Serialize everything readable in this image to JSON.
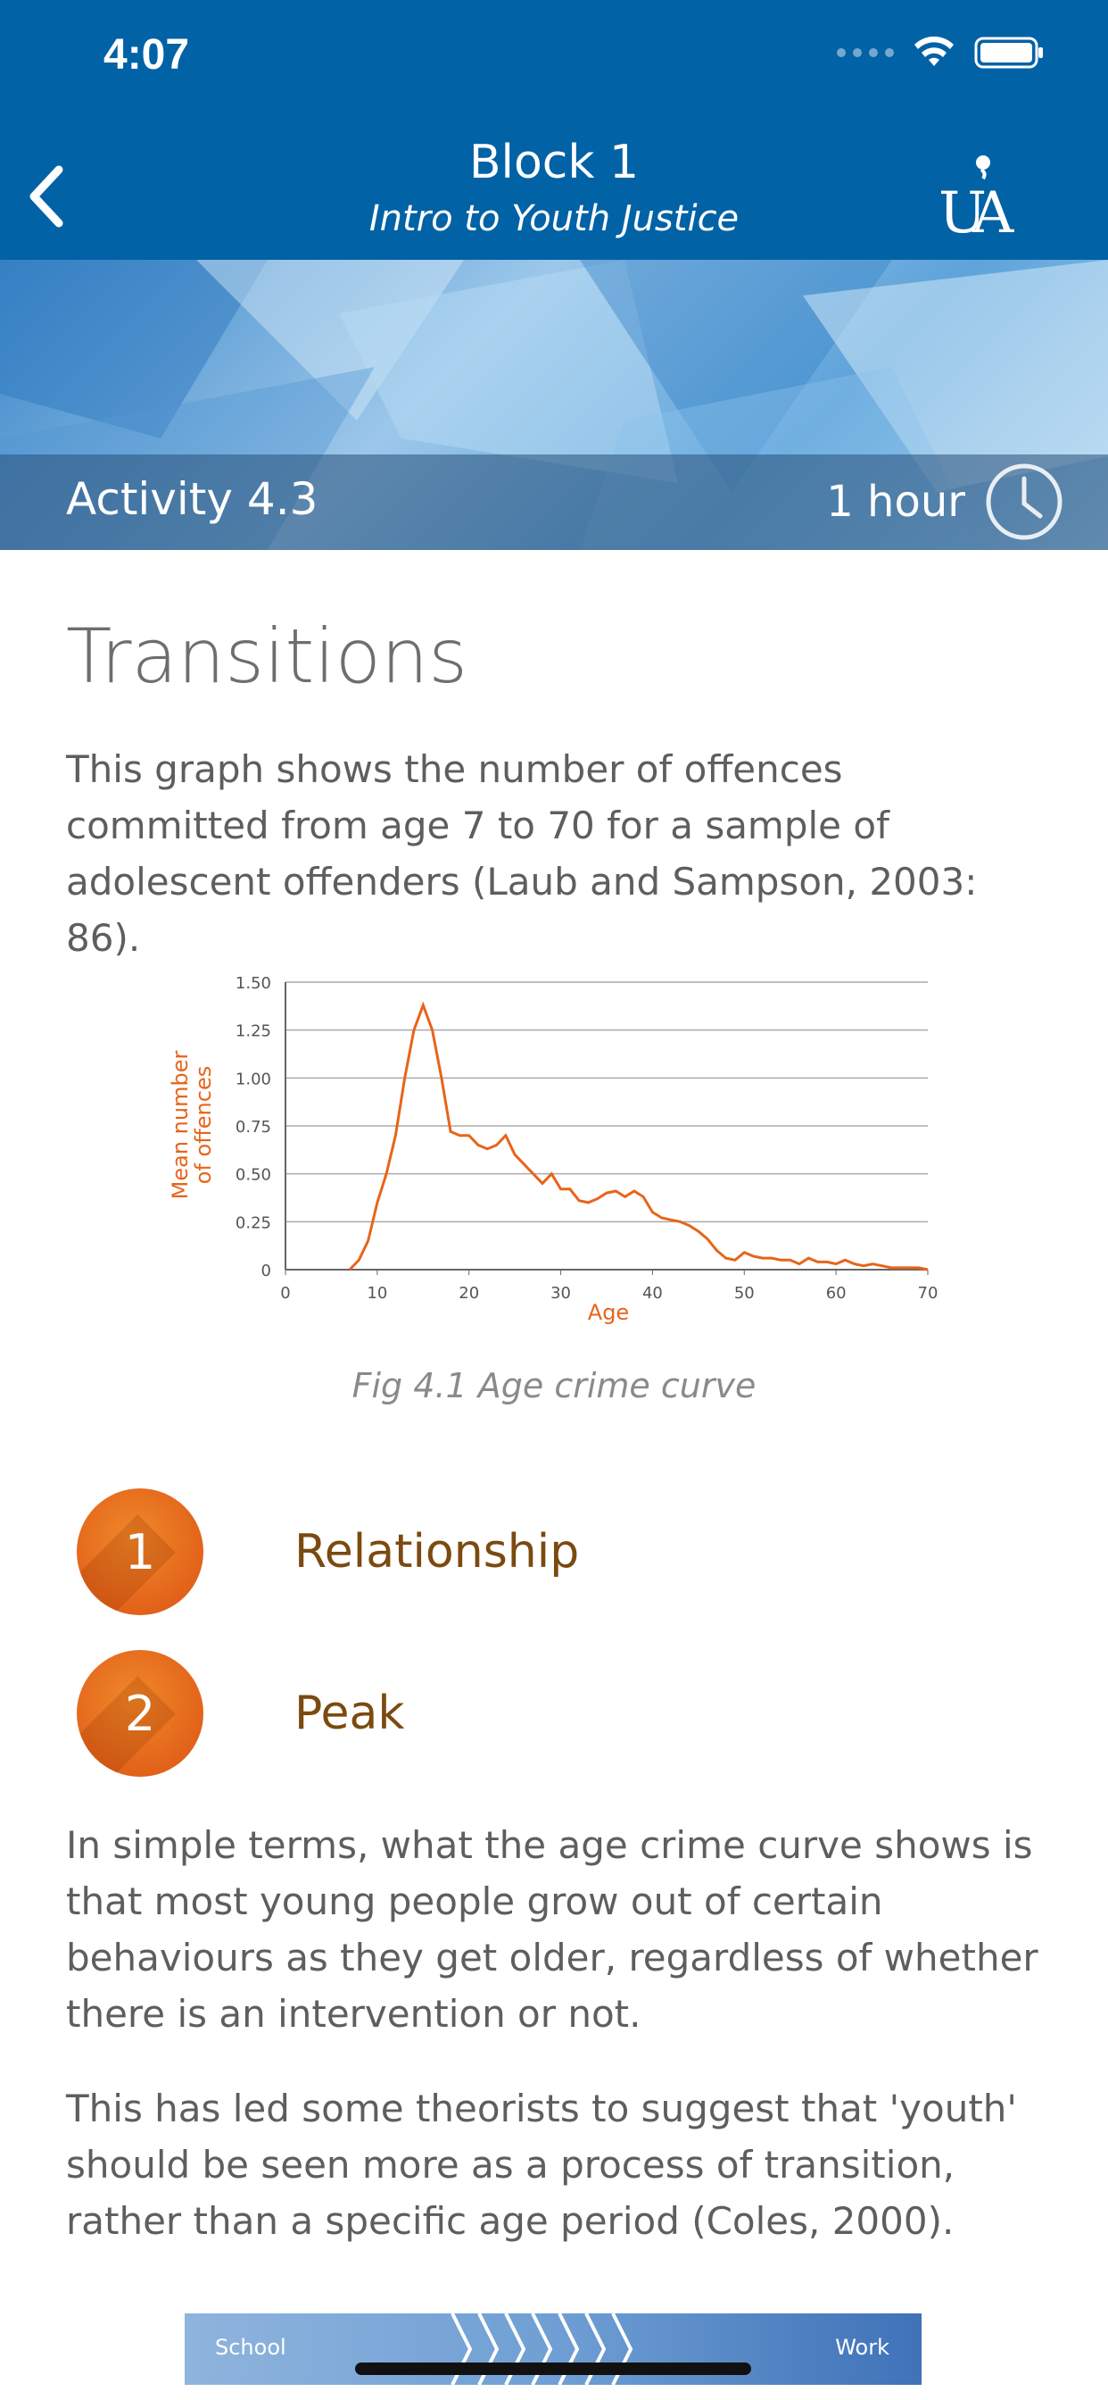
{
  "status_bar": {
    "time": "4:07"
  },
  "nav": {
    "title": "Block 1",
    "subtitle": "Intro to Youth Justice"
  },
  "activity": {
    "label": "Activity 4.3",
    "duration": "1 hour"
  },
  "content": {
    "title": "Transitions",
    "intro": "This graph shows the number of offences committed from age 7 to 70 for a sample of adolescent offenders (Laub and Sampson, 2003: 86).",
    "caption": "Fig 4.1 Age crime curve",
    "items": [
      {
        "number": "1",
        "label": "Relationship"
      },
      {
        "number": "2",
        "label": "Peak"
      }
    ],
    "para2": "In simple terms, what the age crime curve shows is that most young people grow out of certain behaviours as they get older, regardless of whether there is an intervention or not.",
    "para3": "This has led some theorists to suggest that 'youth' should be seen more as a process of transition, rather than a specific age period (Coles, 2000).",
    "transition": {
      "start": "School",
      "end": "Work"
    }
  },
  "colors": {
    "nav_bg": "#0262a6",
    "accent": "#e8641a",
    "item_text": "#7b4a10"
  },
  "chart_data": {
    "type": "line",
    "xlabel": "Age",
    "ylabel": "Mean number of offences",
    "xlim": [
      0,
      70
    ],
    "ylim": [
      0,
      1.5
    ],
    "x_ticks": [
      "0",
      "10",
      "20",
      "30",
      "40",
      "50",
      "60",
      "70"
    ],
    "y_ticks": [
      "0",
      "0.25",
      "0.50",
      "0.75",
      "1.00",
      "1.25",
      "1.50"
    ],
    "grid": "horizontal",
    "series": [
      {
        "x": [
          7,
          8,
          9,
          10,
          11,
          12,
          13,
          14,
          15,
          16,
          17,
          18,
          19,
          20,
          21,
          22,
          23,
          24,
          25,
          26,
          27,
          28,
          29,
          30,
          31,
          32,
          33,
          34,
          35,
          36,
          37,
          38,
          39,
          40,
          41,
          42,
          43,
          44,
          45,
          46,
          47,
          48,
          49,
          50,
          51,
          52,
          53,
          54,
          55,
          56,
          57,
          58,
          59,
          60,
          61,
          62,
          63,
          64,
          65,
          66,
          67,
          68,
          69,
          70
        ],
        "y": [
          0,
          0.05,
          0.15,
          0.35,
          0.5,
          0.7,
          1.0,
          1.25,
          1.38,
          1.25,
          1.0,
          0.72,
          0.7,
          0.7,
          0.65,
          0.63,
          0.65,
          0.7,
          0.6,
          0.55,
          0.5,
          0.45,
          0.5,
          0.42,
          0.42,
          0.36,
          0.35,
          0.37,
          0.4,
          0.41,
          0.38,
          0.41,
          0.38,
          0.3,
          0.27,
          0.26,
          0.25,
          0.23,
          0.2,
          0.16,
          0.1,
          0.06,
          0.05,
          0.09,
          0.07,
          0.06,
          0.06,
          0.05,
          0.05,
          0.03,
          0.06,
          0.04,
          0.04,
          0.03,
          0.05,
          0.03,
          0.02,
          0.03,
          0.02,
          0.01,
          0.01,
          0.01,
          0.01,
          0
        ]
      }
    ]
  }
}
